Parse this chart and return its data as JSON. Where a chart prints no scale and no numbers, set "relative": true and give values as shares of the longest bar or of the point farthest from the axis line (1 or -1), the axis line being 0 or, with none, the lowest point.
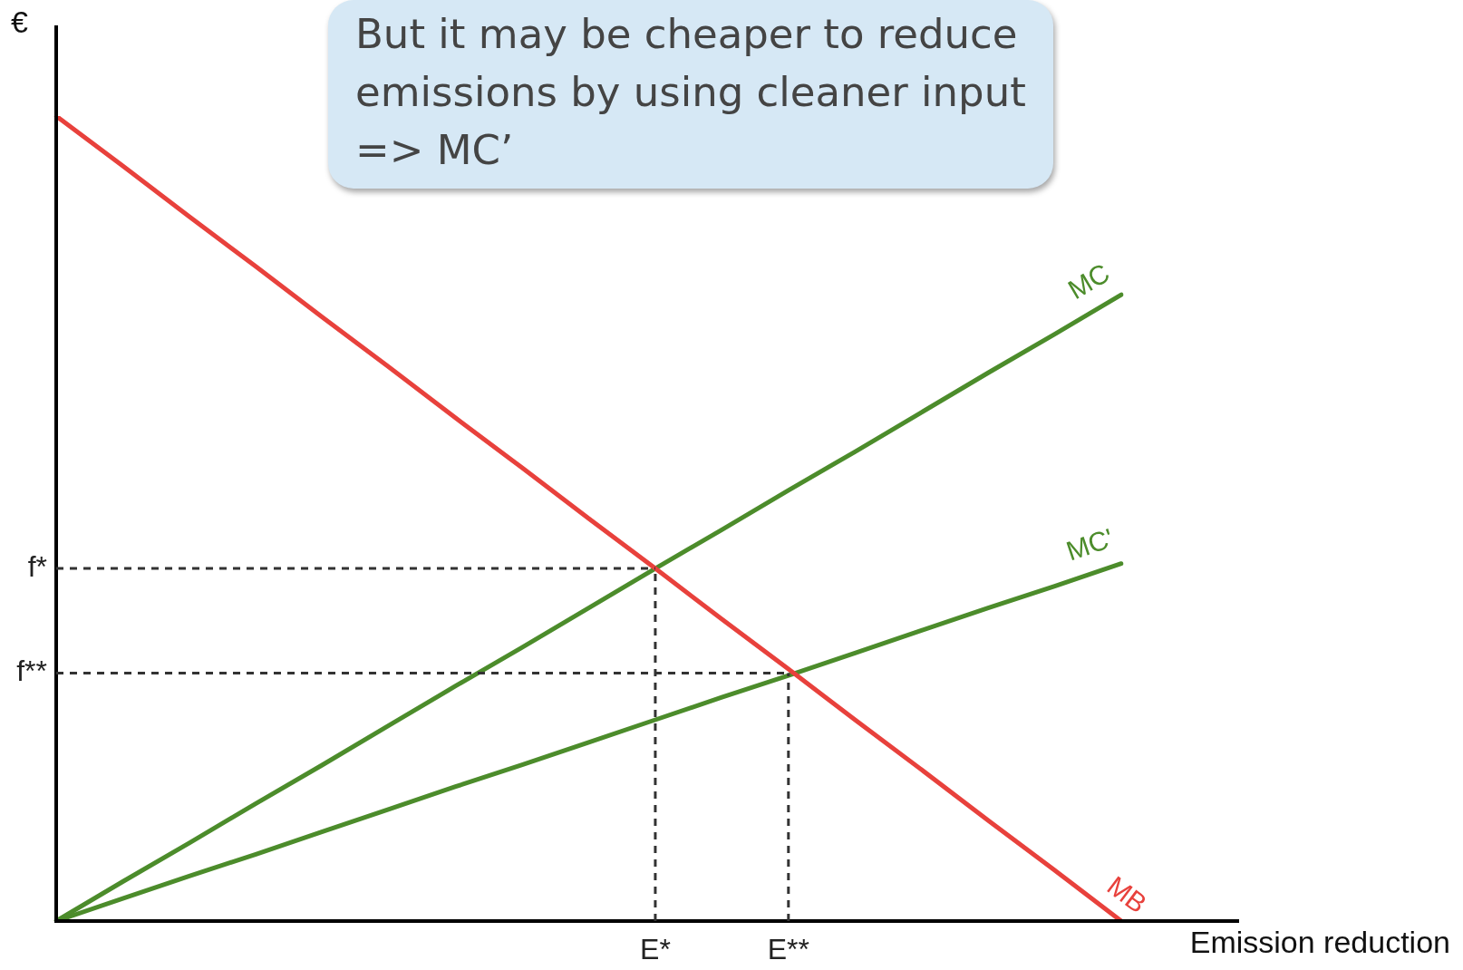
{
  "chart_data": {
    "type": "line",
    "xlabel": "Emission reduction",
    "ylabel": "€",
    "relative": true,
    "annotations": [
      "But it may be cheaper to reduce emissions by using cleaner input =>  MC’"
    ],
    "categories": [
      null,
      null,
      null,
      null,
      null,
      null,
      null,
      null,
      null,
      "E*",
      null,
      "E**",
      null,
      null,
      null,
      null,
      null
    ],
    "legend": false,
    "marker": "none",
    "series": [
      {
        "name": "MB",
        "color": "#e8413c",
        "values": [
          1,
          0.938,
          0.875,
          0.813,
          0.75,
          0.688,
          0.625,
          0.563,
          0.5,
          0.438,
          0.375,
          0.313,
          0.25,
          0.188,
          0.125,
          0.063,
          0
        ]
      },
      {
        "name": "MC",
        "color": "#4c8c2b",
        "values": [
          0,
          0.049,
          0.097,
          0.146,
          0.194,
          0.243,
          0.292,
          0.34,
          0.389,
          0.438,
          0.486,
          0.535,
          0.583,
          0.632,
          0.681,
          0.729,
          0.778
        ]
      },
      {
        "name": "MC'",
        "color": "#4c8c2b",
        "values": [
          0,
          0.028,
          0.056,
          0.083,
          0.111,
          0.139,
          0.167,
          0.194,
          0.222,
          0.25,
          0.278,
          0.305,
          0.333,
          0.361,
          0.389,
          0.416,
          0.444
        ]
      }
    ],
    "ref_lines": [
      {
        "axis": "y",
        "value": 0.438,
        "label": "f*",
        "color": "#333333",
        "line_style": "dashed"
      },
      {
        "axis": "x",
        "value": "E*",
        "color": "#333333",
        "line_style": "dashed"
      },
      {
        "axis": "y",
        "value": 0.308,
        "label": "f**",
        "color": "#333333",
        "line_style": "dashed"
      },
      {
        "axis": "x",
        "value": "E**",
        "color": "#333333",
        "line_style": "dashed"
      }
    ]
  }
}
